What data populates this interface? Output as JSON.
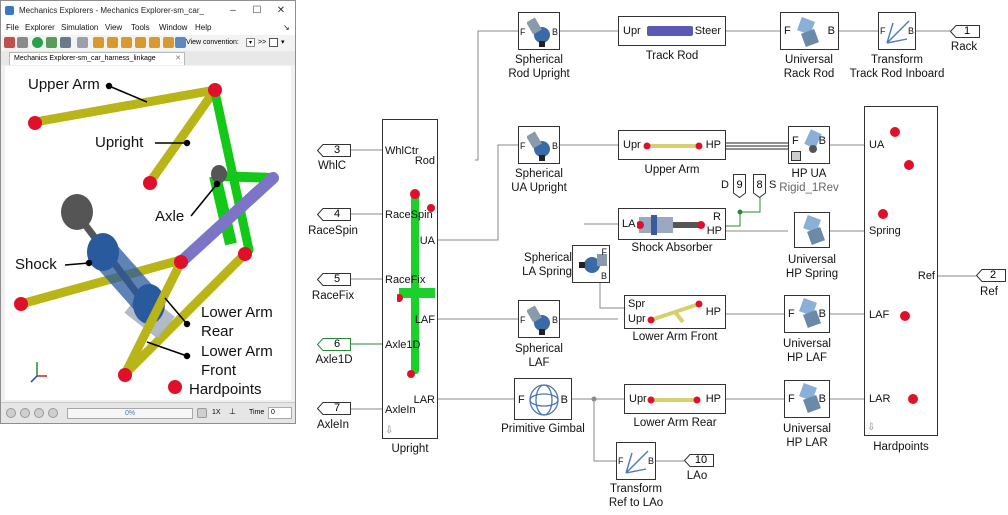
{
  "explorer": {
    "title": "Mechanics Explorers - Mechanics Explorer-sm_car_ha...",
    "window_controls": {
      "minimize": "–",
      "maximize": "☐",
      "close": "✕"
    },
    "menu": [
      "File",
      "Explorer",
      "Simulation",
      "View",
      "Tools",
      "Window",
      "Help"
    ],
    "menu_extra": "↘",
    "toolbar": {
      "view_convention_label": "View convention:",
      "overflow": ">>"
    },
    "tab_label": "Mechanics Explorer-sm_car_harness_linkage",
    "tab_close": "✕",
    "scene_labels": {
      "upper_arm": "Upper Arm",
      "upright": "Upright",
      "axle": "Axle",
      "shock": "Shock",
      "lower_arm_rear_1": "Lower Arm",
      "lower_arm_rear_2": "Rear",
      "lower_arm_front_1": "Lower Arm",
      "lower_arm_front_2": "Front",
      "hardpoints": "Hardpoints"
    },
    "playback": {
      "progress": "0%",
      "progress_fraction": 0,
      "speed": "1X",
      "time_label": "Time",
      "time_value": "0"
    }
  },
  "diagram": {
    "inports": [
      {
        "num": "3",
        "label": "WhlC"
      },
      {
        "num": "4",
        "label": "RaceSpin"
      },
      {
        "num": "5",
        "label": "RaceFix"
      },
      {
        "num": "6",
        "label": "Axle1D"
      },
      {
        "num": "7",
        "label": "AxleIn"
      }
    ],
    "outports": [
      {
        "num": "1",
        "label": "Rack"
      },
      {
        "num": "2",
        "label": "Ref"
      },
      {
        "num": "10",
        "label": "LAo"
      }
    ],
    "goto_tags": {
      "d": "9",
      "d_label": "D",
      "s": "8",
      "s_label": "S"
    },
    "upright": {
      "label": "Upright",
      "ports_in": [
        "WhlCtr",
        "RaceSpin",
        "RaceFix",
        "Axle1D",
        "AxleIn"
      ],
      "ports_out": [
        "Rod",
        "UA",
        "LAF",
        "LAR"
      ]
    },
    "hardpoints": {
      "label": "Hardpoints",
      "ports": [
        "UA",
        "Spring",
        "Ref",
        "LAF",
        "LAR"
      ]
    },
    "port_letters": {
      "F": "F",
      "B": "B",
      "R": "R"
    },
    "blocks": {
      "spherical_rod_upright": [
        "Spherical",
        "Rod Upright"
      ],
      "track_rod": {
        "label": "Track Rod",
        "left": "Upr",
        "right": "Steer"
      },
      "universal_rack_rod": [
        "Universal",
        "Rack Rod"
      ],
      "transform_track_rod": [
        "Transform",
        "Track Rod Inboard"
      ],
      "spherical_ua_upright": [
        "Spherical",
        "UA Upright"
      ],
      "upper_arm": {
        "label": "Upper Arm",
        "left": "Upr",
        "right": "HP"
      },
      "hp_ua": {
        "label": "HP UA",
        "sub": "Rigid_1Rev"
      },
      "shock_absorber": {
        "label": "Shock Absorber",
        "left": "LA",
        "right": "HP"
      },
      "spherical_la_spring": [
        "Spherical",
        "LA Spring"
      ],
      "universal_hp_spring": [
        "Universal",
        "HP Spring"
      ],
      "spherical_laf": [
        "Spherical",
        "LAF"
      ],
      "lower_arm_front": {
        "label": "Lower Arm Front",
        "left_top": "Spr",
        "left_bottom": "Upr",
        "right": "HP"
      },
      "universal_hp_laf": [
        "Universal",
        "HP LAF"
      ],
      "primitive_gimbal": "Primitive Gimbal",
      "lower_arm_rear": {
        "label": "Lower Arm Rear",
        "left": "Upr",
        "right": "HP"
      },
      "universal_hp_lar": [
        "Universal",
        "HP LAR"
      ],
      "transform_ref_lao": [
        "Transform",
        "Ref to LAo"
      ]
    }
  },
  "colors": {
    "arm_yellow": "#b9b417",
    "upright_green": "#14c81a",
    "axle_purple": "#7c74c4",
    "shock_blue": "#2a5a9e",
    "hardpoint_red": "#e0102a",
    "line_gray": "#8a8a8a",
    "signal_green": "#2a8a3a"
  }
}
